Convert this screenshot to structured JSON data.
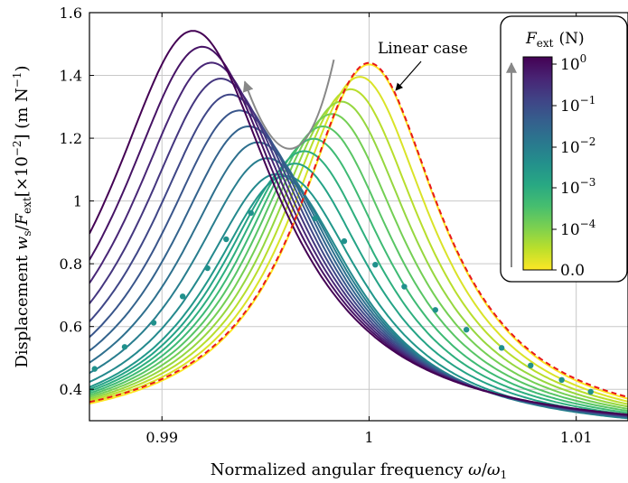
{
  "chart_data": {
    "type": "line",
    "xlabel": "Normalized angular frequency ω/ω₁",
    "ylabel": "Displacement w_s/F_ext [×10⁻²] (m N⁻¹)",
    "xlim": [
      0.9865,
      1.0125
    ],
    "ylim": [
      0.3,
      1.6
    ],
    "xticks": [
      0.99,
      1.0,
      1.01
    ],
    "xtick_labels": [
      "0.99",
      "1",
      "1.01"
    ],
    "yticks": [
      0.4,
      0.6,
      0.8,
      1.0,
      1.2,
      1.4,
      1.6
    ],
    "ytick_labels": [
      "0.4",
      "0.6",
      "0.8",
      "1",
      "1.2",
      "1.4",
      "1.6"
    ],
    "grid": true,
    "colormap": "viridis",
    "colorbar": {
      "title": "F_ext (N)",
      "title_text": "(N)",
      "tick_labels": [
        "10^0",
        "10^-1",
        "10^-2",
        "10^-3",
        "10^-4",
        "0.0"
      ],
      "tick_main": [
        "10",
        "10",
        "10",
        "10",
        "10",
        "0.0"
      ],
      "tick_exp": [
        "0",
        "−1",
        "−2",
        "−3",
        "−4",
        ""
      ],
      "placement": "top-right"
    },
    "linear_case": {
      "label": "Linear case",
      "color": "#e8191b",
      "peak_x": 1.0,
      "peak_y": 1.435,
      "style": "dashed"
    },
    "cross_point": {
      "x": 0.9958,
      "y": 1.0
    },
    "series_count": 20,
    "max_peak": {
      "x": 0.9915,
      "y": 1.542
    },
    "min_peak_shift": 0.0085,
    "backbone_points_left": [
      {
        "x": 0.98675,
        "y": 0.465
      },
      {
        "x": 0.9882,
        "y": 0.535
      },
      {
        "x": 0.9896,
        "y": 0.612
      },
      {
        "x": 0.991,
        "y": 0.696
      },
      {
        "x": 0.9922,
        "y": 0.786
      },
      {
        "x": 0.9931,
        "y": 0.878
      },
      {
        "x": 0.9943,
        "y": 0.962
      }
    ],
    "backbone_points_right": [
      {
        "x": 0.9974,
        "y": 0.945
      },
      {
        "x": 0.9988,
        "y": 0.872
      },
      {
        "x": 1.0003,
        "y": 0.797
      },
      {
        "x": 1.0017,
        "y": 0.727
      },
      {
        "x": 1.0032,
        "y": 0.653
      },
      {
        "x": 1.0047,
        "y": 0.59
      },
      {
        "x": 1.0064,
        "y": 0.532
      },
      {
        "x": 1.0078,
        "y": 0.476
      },
      {
        "x": 1.0093,
        "y": 0.43
      },
      {
        "x": 1.0107,
        "y": 0.392
      }
    ],
    "trend_arrow_color": "#888888",
    "backbone_color": "#21918c"
  }
}
